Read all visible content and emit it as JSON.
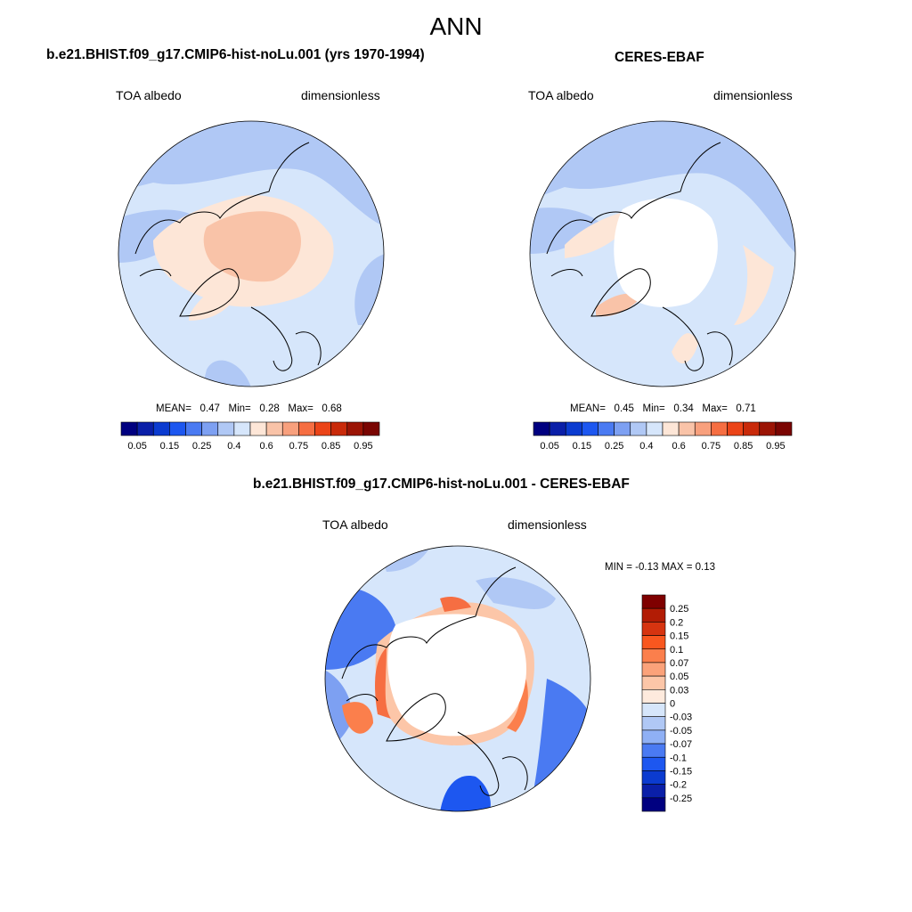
{
  "figure": {
    "title": "ANN"
  },
  "panels": {
    "model": {
      "title": "b.e21.BHIST.f09_g17.CMIP6-hist-noLu.001 (yrs 1970-1994)",
      "left_label": "TOA albedo",
      "right_label": "dimensionless",
      "stats": {
        "mean_label": "MEAN=",
        "mean": "0.47",
        "min_label": "Min=",
        "min": "0.28",
        "max_label": "Max=",
        "max": "0.68"
      }
    },
    "obs": {
      "title": "CERES-EBAF",
      "left_label": "TOA albedo",
      "right_label": "dimensionless",
      "stats": {
        "mean_label": "MEAN=",
        "mean": "0.45",
        "min_label": "Min=",
        "min": "0.34",
        "max_label": "Max=",
        "max": "0.71"
      }
    },
    "diff": {
      "title": "b.e21.BHIST.f09_g17.CMIP6-hist-noLu.001 - CERES-EBAF",
      "left_label": "TOA albedo",
      "right_label": "dimensionless",
      "minmax": "MIN =  -0.13 MAX =   0.13"
    }
  },
  "colorbars": {
    "abs": {
      "colors": [
        "#000080",
        "#0a1fa8",
        "#0b3bd0",
        "#1d57f0",
        "#4a7af2",
        "#7da0f2",
        "#b0c8f5",
        "#d6e6fb",
        "#fde6d7",
        "#f9c3a8",
        "#f8a07d",
        "#f66e42",
        "#eb4418",
        "#c92a0a",
        "#9b1405",
        "#7a0502"
      ],
      "ticks": [
        "0.05",
        "0.15",
        "0.25",
        "0.4",
        "0.6",
        "0.75",
        "0.85",
        "0.95"
      ]
    },
    "diff": {
      "colors": [
        "#7f0000",
        "#b21c05",
        "#d63410",
        "#f9571f",
        "#fb7f4c",
        "#fba27a",
        "#fcc6a8",
        "#feeadd",
        "#d6e6fb",
        "#b0c8f5",
        "#8fb0f5",
        "#4a7af2",
        "#1d57f0",
        "#0b3bd0",
        "#0a1fa8",
        "#000080"
      ],
      "ticks": [
        "0.25",
        "0.2",
        "0.15",
        "0.1",
        "0.07",
        "0.05",
        "0.03",
        "0",
        "-0.03",
        "-0.05",
        "-0.07",
        "-0.1",
        "-0.15",
        "-0.2",
        "-0.25"
      ]
    }
  },
  "chart_data": [
    {
      "type": "heatmap",
      "title": "b.e21.BHIST.f09_g17.CMIP6-hist-noLu.001 (yrs 1970-1994)",
      "variable": "TOA albedo",
      "units": "dimensionless",
      "projection": "north polar stereographic",
      "stats": {
        "mean": 0.47,
        "min": 0.28,
        "max": 0.68
      },
      "levels": [
        0.05,
        0.1,
        0.15,
        0.2,
        0.25,
        0.3,
        0.4,
        0.5,
        0.6,
        0.65,
        0.75,
        0.8,
        0.85,
        0.9,
        0.95
      ]
    },
    {
      "type": "heatmap",
      "title": "CERES-EBAF",
      "variable": "TOA albedo",
      "units": "dimensionless",
      "projection": "north polar stereographic",
      "stats": {
        "mean": 0.45,
        "min": 0.34,
        "max": 0.71
      },
      "levels": [
        0.05,
        0.1,
        0.15,
        0.2,
        0.25,
        0.3,
        0.4,
        0.5,
        0.6,
        0.65,
        0.75,
        0.8,
        0.85,
        0.9,
        0.95
      ]
    },
    {
      "type": "heatmap",
      "title": "b.e21.BHIST.f09_g17.CMIP6-hist-noLu.001 - CERES-EBAF",
      "variable": "TOA albedo",
      "units": "dimensionless",
      "projection": "north polar stereographic",
      "stats": {
        "min": -0.13,
        "max": 0.13
      },
      "levels": [
        -0.25,
        -0.2,
        -0.15,
        -0.1,
        -0.07,
        -0.05,
        -0.03,
        0,
        0.03,
        0.05,
        0.07,
        0.1,
        0.15,
        0.2,
        0.25
      ]
    }
  ]
}
